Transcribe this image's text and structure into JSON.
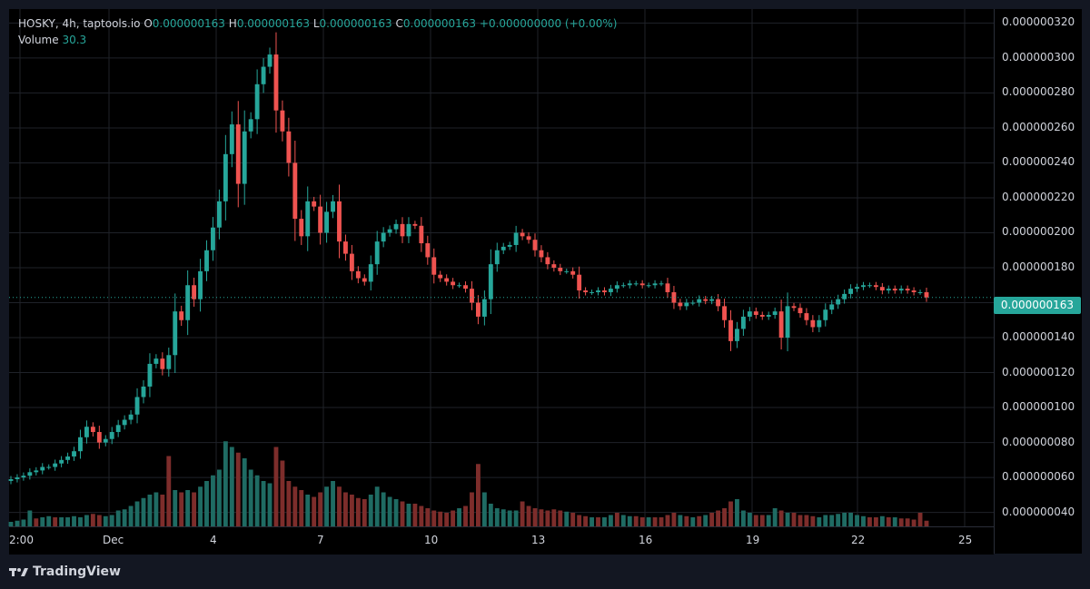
{
  "header": {
    "symbol": "HOSKY, 4h, taptools.io",
    "open_label": "O",
    "open_value": "0.000000163",
    "high_label": "H",
    "high_value": "0.000000163",
    "low_label": "L",
    "low_value": "0.000000163",
    "close_label": "C",
    "close_value": "0.000000163",
    "change_value": "+0.000000000 (+0.00%)"
  },
  "volume": {
    "label": "Volume",
    "value": "30.3"
  },
  "last_price_label": "0.000000163",
  "brand": "TradingView",
  "colors": {
    "up": "#26a69a",
    "down": "#ef5350",
    "up_vol": "#1f6b63",
    "down_vol": "#7d2d2b",
    "bg": "#000000",
    "grid": "#1f2229",
    "text": "#d1d4dc"
  },
  "chart_data": {
    "type": "candlestick",
    "symbol": "HOSKY",
    "interval": "4h",
    "price_unit_scale": 1e-09,
    "y_ticks": [
      40,
      60,
      80,
      100,
      120,
      140,
      160,
      180,
      200,
      220,
      240,
      260,
      280,
      300,
      320
    ],
    "y_tick_labels": [
      "0.000000040",
      "0.000000060",
      "0.000000080",
      "0.000000100",
      "0.000000120",
      "0.000000140",
      "0.000000160",
      "0.000000180",
      "0.000000200",
      "0.000000220",
      "0.000000240",
      "0.000000260",
      "0.000000280",
      "0.000000300",
      "0.000000320"
    ],
    "ylim": [
      32,
      328
    ],
    "last_price": 163,
    "x_labels": [
      "2:00",
      "Dec",
      "4",
      "7",
      "10",
      "13",
      "16",
      "19",
      "22",
      "25"
    ],
    "closes": [
      59,
      60,
      61,
      63,
      64,
      66,
      66,
      68,
      70,
      72,
      75,
      83,
      89,
      86,
      80,
      82,
      86,
      90,
      93,
      96,
      106,
      112,
      125,
      128,
      122,
      130,
      155,
      150,
      170,
      162,
      178,
      190,
      203,
      218,
      245,
      262,
      228,
      258,
      265,
      285,
      295,
      302,
      270,
      258,
      240,
      208,
      198,
      218,
      215,
      200,
      212,
      218,
      195,
      188,
      178,
      174,
      172,
      182,
      195,
      200,
      202,
      205,
      198,
      205,
      204,
      194,
      186,
      176,
      174,
      172,
      170,
      170,
      168,
      160,
      152,
      162,
      182,
      190,
      192,
      193,
      200,
      198,
      196,
      190,
      186,
      182,
      180,
      178,
      178,
      176,
      167,
      166,
      166,
      167,
      166,
      168,
      170,
      170,
      171,
      171,
      170,
      170,
      171,
      171,
      166,
      160,
      158,
      160,
      160,
      162,
      161,
      162,
      158,
      150,
      138,
      145,
      152,
      155,
      153,
      152,
      153,
      155,
      140,
      158,
      157,
      154,
      150,
      146,
      150,
      156,
      159,
      162,
      165,
      168,
      169,
      170,
      170,
      169,
      167,
      168,
      167,
      168,
      167,
      166,
      166,
      163
    ],
    "volume_scale_max": 120,
    "volumes": [
      4,
      5,
      6,
      14,
      7,
      8,
      9,
      8,
      8,
      8,
      9,
      8,
      10,
      11,
      10,
      9,
      10,
      14,
      15,
      18,
      22,
      25,
      28,
      30,
      28,
      62,
      32,
      30,
      32,
      30,
      35,
      40,
      45,
      50,
      75,
      70,
      65,
      60,
      50,
      45,
      40,
      38,
      70,
      58,
      40,
      35,
      32,
      28,
      26,
      30,
      35,
      40,
      35,
      30,
      28,
      25,
      24,
      28,
      35,
      30,
      26,
      24,
      22,
      20,
      20,
      18,
      16,
      14,
      13,
      12,
      14,
      16,
      18,
      30,
      55,
      30,
      20,
      16,
      15,
      14,
      14,
      22,
      18,
      16,
      15,
      14,
      15,
      14,
      13,
      12,
      10,
      9,
      8,
      8,
      8,
      10,
      12,
      10,
      9,
      9,
      8,
      8,
      8,
      8,
      10,
      12,
      10,
      9,
      8,
      9,
      10,
      12,
      14,
      16,
      22,
      24,
      14,
      12,
      10,
      10,
      10,
      16,
      14,
      12,
      12,
      10,
      10,
      9,
      8,
      10,
      10,
      11,
      12,
      12,
      10,
      9,
      8,
      8,
      9,
      8,
      8,
      7,
      7,
      6,
      12,
      5
    ],
    "volume_up": [
      true,
      true,
      true,
      true,
      false,
      true,
      true,
      false,
      true,
      true,
      true,
      true,
      true,
      false,
      false,
      true,
      true,
      true,
      true,
      true,
      true,
      true,
      true,
      true,
      false,
      false,
      true,
      false,
      true,
      false,
      true,
      true,
      true,
      true,
      true,
      true,
      false,
      true,
      true,
      true,
      true,
      true,
      false,
      false,
      false,
      false,
      false,
      true,
      false,
      false,
      true,
      true,
      false,
      false,
      false,
      false,
      false,
      true,
      true,
      true,
      true,
      true,
      false,
      true,
      false,
      false,
      false,
      false,
      false,
      false,
      false,
      true,
      false,
      false,
      false,
      true,
      true,
      true,
      true,
      true,
      true,
      false,
      false,
      false,
      false,
      false,
      false,
      false,
      true,
      false,
      false,
      false,
      true,
      false,
      true,
      true,
      false,
      true,
      true,
      false,
      false,
      true,
      false,
      false,
      false,
      false,
      true,
      false,
      true,
      false,
      true,
      false,
      false,
      false,
      false,
      true,
      true,
      true,
      false,
      false,
      true,
      true,
      false,
      true,
      false,
      false,
      false,
      false,
      true,
      true,
      true,
      true,
      true,
      true,
      true,
      true,
      false,
      false,
      true,
      false,
      true,
      false,
      false,
      false,
      false,
      false
    ]
  }
}
